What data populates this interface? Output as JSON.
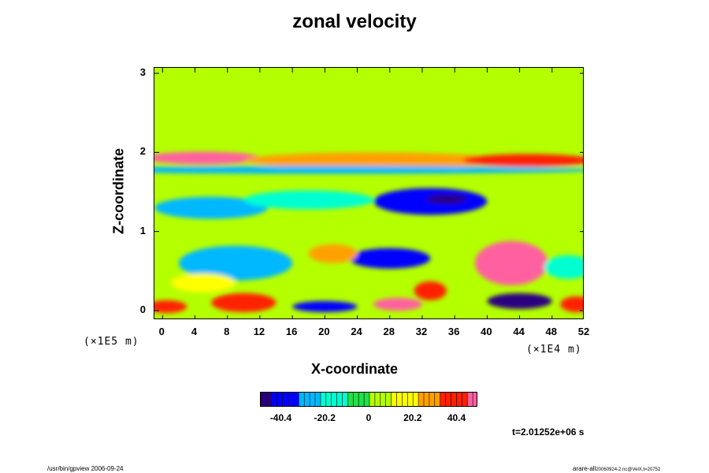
{
  "chart_data": {
    "type": "heatmap",
    "title": "zonal velocity",
    "xlabel": "X-coordinate",
    "ylabel": "Z-coordinate",
    "x_scale_label": "(×1E4 m)",
    "y_scale_label": "(×1E5 m)",
    "x_ticks": [
      0,
      4,
      8,
      12,
      16,
      20,
      24,
      28,
      32,
      36,
      40,
      44,
      48,
      52
    ],
    "y_ticks": [
      0,
      1,
      2,
      3
    ],
    "xlim": [
      -1,
      52
    ],
    "ylim": [
      -0.12,
      3.07
    ],
    "colorbar": {
      "range": [
        -50,
        50
      ],
      "tick_labels": [
        "-40.4",
        "-20.2",
        "0",
        "20.2",
        "40.4"
      ],
      "tick_values": [
        -40.4,
        -20.2,
        0,
        20.2,
        40.4
      ],
      "colormap": [
        "#2a0080",
        "#0000ff",
        "#00b8ff",
        "#00ffd0",
        "#22e04a",
        "#b4ff00",
        "#ffff00",
        "#ffa000",
        "#ff2000",
        "#ff60a0"
      ]
    },
    "background_value": 0,
    "features": [
      {
        "x": 5,
        "z": 1.93,
        "w": 7,
        "h": 0.08,
        "value": 45
      },
      {
        "x": 26,
        "z": 1.9,
        "w": 16,
        "h": 0.1,
        "value": 32
      },
      {
        "x": 45,
        "z": 1.9,
        "w": 8,
        "h": 0.08,
        "value": 38
      },
      {
        "x": 20,
        "z": 1.78,
        "w": 34,
        "h": 0.05,
        "value": -28
      },
      {
        "x": 6,
        "z": 1.3,
        "w": 7,
        "h": 0.14,
        "value": -32
      },
      {
        "x": 18,
        "z": 1.4,
        "w": 8,
        "h": 0.12,
        "value": -22
      },
      {
        "x": 33,
        "z": 1.38,
        "w": 7,
        "h": 0.17,
        "value": -38
      },
      {
        "x": 35,
        "z": 1.41,
        "w": 2.5,
        "h": 0.06,
        "value": -50
      },
      {
        "x": 9,
        "z": 0.6,
        "w": 7,
        "h": 0.22,
        "value": -30
      },
      {
        "x": 28,
        "z": 0.66,
        "w": 5,
        "h": 0.13,
        "value": -38
      },
      {
        "x": 43,
        "z": 0.6,
        "w": 4.5,
        "h": 0.28,
        "value": 45
      },
      {
        "x": 43.5,
        "z": 0.55,
        "w": 2.5,
        "h": 0.12,
        "value": 50
      },
      {
        "x": 10,
        "z": 0.1,
        "w": 4,
        "h": 0.12,
        "value": 40
      },
      {
        "x": 0.5,
        "z": 0.05,
        "w": 2.5,
        "h": 0.08,
        "value": 42
      },
      {
        "x": 20,
        "z": 0.05,
        "w": 4,
        "h": 0.07,
        "value": -42
      },
      {
        "x": 29,
        "z": 0.08,
        "w": 3,
        "h": 0.08,
        "value": 45
      },
      {
        "x": 33,
        "z": 0.25,
        "w": 2,
        "h": 0.12,
        "value": 35
      },
      {
        "x": 44,
        "z": 0.12,
        "w": 4,
        "h": 0.1,
        "value": -45
      },
      {
        "x": 51,
        "z": 0.08,
        "w": 2,
        "h": 0.1,
        "value": 40
      },
      {
        "x": 21,
        "z": 0.72,
        "w": 3,
        "h": 0.12,
        "value": 32
      },
      {
        "x": 5,
        "z": 0.35,
        "w": 4,
        "h": 0.12,
        "value": 18
      },
      {
        "x": 50,
        "z": 0.55,
        "w": 3,
        "h": 0.15,
        "value": -20
      }
    ]
  },
  "timestamp": "t=2.01252e+06 s",
  "footer": {
    "left": "/usr/bin/gpview 2006-09-24",
    "right": "arare-all",
    "right_small": "20060924-2.nc@VelX,t=20752"
  }
}
